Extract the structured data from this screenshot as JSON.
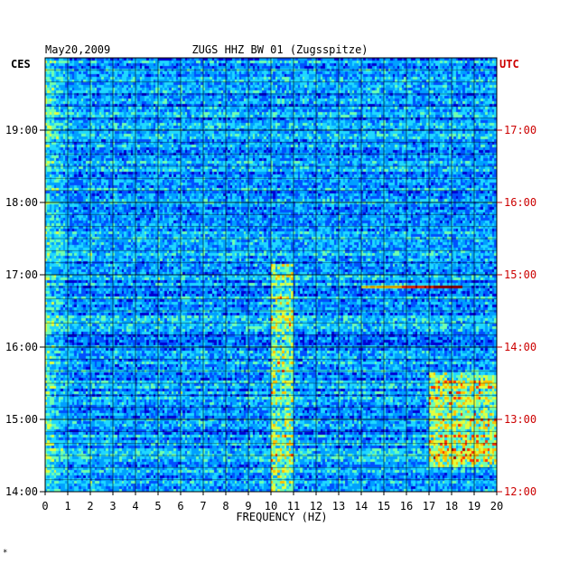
{
  "chart_data": {
    "type": "heatmap",
    "date_label": "May20,2009",
    "station_label": "ZUGS HHZ BW 01 (Zugsspitze)",
    "left_timezone": "CES",
    "right_timezone": "UTC",
    "xlabel": "FREQUENCY (HZ)",
    "xlim": [
      0,
      20
    ],
    "x_ticks": [
      "0",
      "1",
      "2",
      "3",
      "4",
      "5",
      "6",
      "7",
      "8",
      "9",
      "10",
      "11",
      "12",
      "13",
      "14",
      "15",
      "16",
      "17",
      "18",
      "19",
      "20"
    ],
    "y_ticks_left": [
      "19:00",
      "18:00",
      "17:00",
      "16:00",
      "15:00",
      "14:00"
    ],
    "y_ticks_right": [
      "17:00",
      "16:00",
      "15:00",
      "14:00",
      "13:00",
      "12:00"
    ],
    "time_range_cest": [
      "14:00",
      "20:00"
    ],
    "grid": true,
    "colormap": [
      "#00008c",
      "#0000d2",
      "#0050ff",
      "#00a0ff",
      "#20d8ff",
      "#70ffb0",
      "#e0ff40",
      "#ffc000",
      "#ff3000",
      "#a00000"
    ],
    "features": [
      {
        "label": "broadband event",
        "freq_range_hz": [
          14,
          18.5
        ],
        "time_cest": "16:50",
        "level": 0.85
      },
      {
        "label": "persistent band",
        "freq_range_hz": [
          10,
          11
        ],
        "time_range_cest": [
          "14:00",
          "17:10"
        ],
        "level": 0.55
      },
      {
        "label": "high-frequency patch",
        "freq_range_hz": [
          17,
          20
        ],
        "time_range_cest": [
          "14:20",
          "15:40"
        ],
        "level": 0.6
      }
    ],
    "corner_mark": "*"
  }
}
